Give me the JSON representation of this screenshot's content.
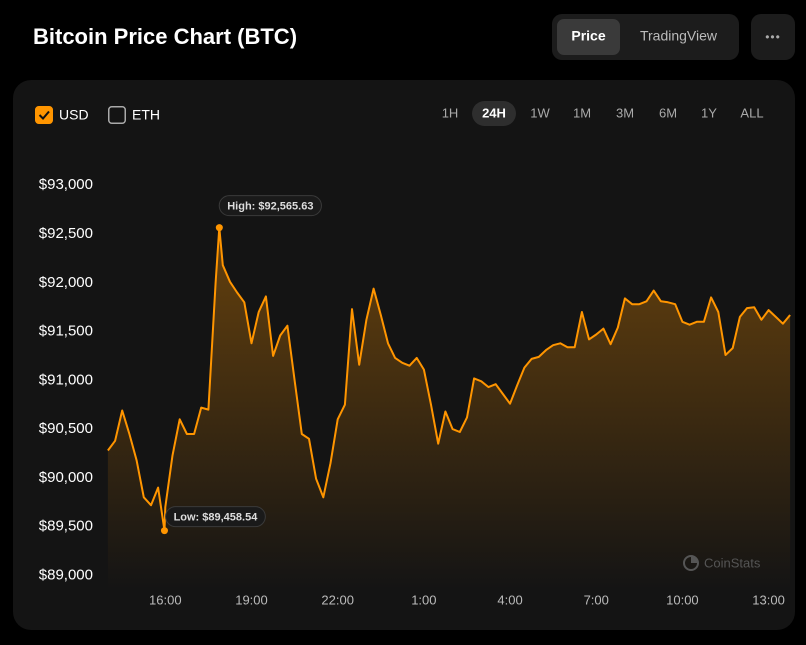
{
  "header": {
    "title": "Bitcoin Price Chart (BTC)",
    "tabs": [
      {
        "label": "Price",
        "active": true
      },
      {
        "label": "TradingView",
        "active": false
      }
    ],
    "menu": "•••"
  },
  "currencies": [
    {
      "label": "USD",
      "checked": true
    },
    {
      "label": "ETH",
      "checked": false
    }
  ],
  "ranges": [
    {
      "label": "1H",
      "active": false
    },
    {
      "label": "24H",
      "active": true
    },
    {
      "label": "1W",
      "active": false
    },
    {
      "label": "1M",
      "active": false
    },
    {
      "label": "3M",
      "active": false
    },
    {
      "label": "6M",
      "active": false
    },
    {
      "label": "1Y",
      "active": false
    },
    {
      "label": "ALL",
      "active": false
    }
  ],
  "watermark": "CoinStats",
  "chart_data": {
    "type": "line",
    "high_label": "High: $92,565.63",
    "low_label": "Low: $89,458.54",
    "x": [
      14.0,
      14.25,
      14.5,
      14.75,
      15.0,
      15.25,
      15.5,
      15.75,
      15.97,
      16.0,
      16.25,
      16.5,
      16.75,
      17.0,
      17.25,
      17.5,
      17.75,
      17.88,
      18.0,
      18.25,
      18.5,
      18.75,
      19.0,
      19.25,
      19.5,
      19.75,
      20.0,
      20.25,
      20.5,
      20.75,
      21.0,
      21.25,
      21.5,
      21.75,
      22.0,
      22.25,
      22.5,
      22.75,
      23.0,
      23.25,
      23.5,
      23.75,
      24.0,
      24.25,
      24.5,
      24.75,
      25.0,
      25.25,
      25.5,
      25.75,
      26.0,
      26.25,
      26.5,
      26.75,
      27.0,
      27.25,
      27.5,
      27.75,
      28.0,
      28.25,
      28.5,
      28.75,
      29.0,
      29.25,
      29.5,
      29.75,
      30.0,
      30.25,
      30.5,
      30.75,
      31.0,
      31.25,
      31.5,
      31.75,
      32.0,
      32.25,
      32.5,
      32.75,
      33.0,
      33.25,
      33.5,
      33.75,
      34.0,
      34.25,
      34.5,
      34.75,
      35.0,
      35.25,
      35.5,
      35.75,
      36.0,
      36.25,
      36.5,
      36.75,
      37.0,
      37.25,
      37.5,
      37.75
    ],
    "series": [
      {
        "name": "BTC",
        "color": "#ff9500",
        "values": [
          90280,
          90380,
          90690,
          90450,
          90180,
          89800,
          89720,
          89900,
          89458.54,
          89700,
          90230,
          90600,
          90450,
          90450,
          90720,
          90700,
          92000,
          92565.63,
          92180,
          92010,
          91900,
          91800,
          91380,
          91700,
          91860,
          91250,
          91460,
          91560,
          91000,
          90450,
          90400,
          89990,
          89800,
          90150,
          90600,
          90750,
          91730,
          91160,
          91620,
          91940,
          91670,
          91380,
          91230,
          91180,
          91150,
          91230,
          91110,
          90750,
          90350,
          90680,
          90500,
          90470,
          90620,
          91020,
          90990,
          90930,
          90960,
          90860,
          90760,
          90950,
          91130,
          91220,
          91240,
          91310,
          91360,
          91380,
          91340,
          91340,
          91700,
          91420,
          91470,
          91530,
          91370,
          91540,
          91840,
          91780,
          91780,
          91810,
          91920,
          91810,
          91800,
          91780,
          91600,
          91570,
          91600,
          91600,
          91850,
          91700,
          91260,
          91330,
          91650,
          91740,
          91750,
          91620,
          91720,
          91650,
          91580,
          91670
        ]
      }
    ],
    "xlim": [
      13.9,
      37.85
    ],
    "ylim": [
      88850,
      93300
    ],
    "xticks": [
      {
        "value": 16,
        "label": "16:00"
      },
      {
        "value": 19,
        "label": "19:00"
      },
      {
        "value": 22,
        "label": "22:00"
      },
      {
        "value": 25,
        "label": "1:00"
      },
      {
        "value": 28,
        "label": "4:00"
      },
      {
        "value": 31,
        "label": "7:00"
      },
      {
        "value": 34,
        "label": "10:00"
      },
      {
        "value": 37,
        "label": "13:00"
      }
    ],
    "yticks": [
      {
        "value": 89000,
        "label": "$89,000"
      },
      {
        "value": 89500,
        "label": "$89,500"
      },
      {
        "value": 90000,
        "label": "$90,000"
      },
      {
        "value": 90500,
        "label": "$90,500"
      },
      {
        "value": 91000,
        "label": "$91,000"
      },
      {
        "value": 91500,
        "label": "$91,500"
      },
      {
        "value": 92000,
        "label": "$92,000"
      },
      {
        "value": 92500,
        "label": "$92,500"
      },
      {
        "value": 93000,
        "label": "$93,000"
      }
    ],
    "grid": false
  }
}
